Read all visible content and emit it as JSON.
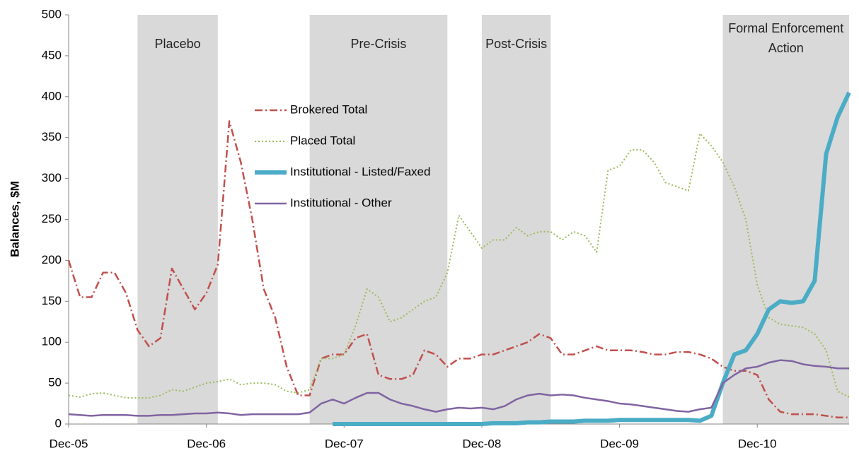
{
  "chart_data": {
    "type": "line",
    "y_label": "Balances, $M",
    "x": [
      "2005-12",
      "2006-01",
      "2006-02",
      "2006-03",
      "2006-04",
      "2006-05",
      "2006-06",
      "2006-07",
      "2006-08",
      "2006-09",
      "2006-10",
      "2006-11",
      "2006-12",
      "2007-01",
      "2007-02",
      "2007-03",
      "2007-04",
      "2007-05",
      "2007-06",
      "2007-07",
      "2007-08",
      "2007-09",
      "2007-10",
      "2007-11",
      "2007-12",
      "2008-01",
      "2008-02",
      "2008-03",
      "2008-04",
      "2008-05",
      "2008-06",
      "2008-07",
      "2008-08",
      "2008-09",
      "2008-10",
      "2008-11",
      "2008-12",
      "2009-01",
      "2009-02",
      "2009-03",
      "2009-04",
      "2009-05",
      "2009-06",
      "2009-07",
      "2009-08",
      "2009-09",
      "2009-10",
      "2009-11",
      "2009-12",
      "2010-01",
      "2010-02",
      "2010-03",
      "2010-04",
      "2010-05",
      "2010-06",
      "2010-07",
      "2010-08",
      "2010-09",
      "2010-10",
      "2010-11",
      "2010-12",
      "2011-01",
      "2011-02",
      "2011-03",
      "2011-04",
      "2011-05",
      "2011-06",
      "2011-07",
      "2011-08"
    ],
    "series": [
      {
        "name": "Brokered Total",
        "color": "#c0504d",
        "style": "dashdot",
        "values": [
          200,
          155,
          155,
          185,
          185,
          160,
          115,
          95,
          105,
          190,
          165,
          140,
          160,
          195,
          370,
          320,
          250,
          165,
          130,
          70,
          35,
          35,
          80,
          85,
          85,
          105,
          110,
          60,
          55,
          55,
          60,
          90,
          85,
          70,
          80,
          80,
          85,
          85,
          90,
          95,
          100,
          110,
          105,
          85,
          85,
          90,
          95,
          90,
          90,
          90,
          88,
          85,
          85,
          88,
          88,
          85,
          80,
          70,
          65,
          65,
          60,
          30,
          15,
          12,
          12,
          12,
          10,
          8,
          8
        ]
      },
      {
        "name": "Placed Total",
        "color": "#9bbb59",
        "style": "dotted",
        "values": [
          35,
          33,
          37,
          38,
          35,
          32,
          32,
          32,
          35,
          42,
          40,
          45,
          50,
          52,
          55,
          48,
          50,
          50,
          48,
          40,
          38,
          42,
          80,
          80,
          85,
          120,
          165,
          155,
          125,
          130,
          140,
          150,
          155,
          185,
          255,
          235,
          215,
          225,
          225,
          240,
          230,
          235,
          235,
          225,
          235,
          230,
          210,
          310,
          315,
          335,
          335,
          320,
          295,
          290,
          285,
          355,
          340,
          320,
          290,
          250,
          170,
          130,
          122,
          120,
          118,
          110,
          90,
          40,
          33
        ]
      },
      {
        "name": "Institutional - Listed/Faxed",
        "color": "#4bacc6",
        "style": "thick",
        "values": [
          null,
          null,
          null,
          null,
          null,
          null,
          null,
          null,
          null,
          null,
          null,
          null,
          null,
          null,
          null,
          null,
          null,
          null,
          null,
          null,
          null,
          null,
          null,
          0,
          0,
          0,
          0,
          0,
          0,
          0,
          0,
          0,
          0,
          0,
          0,
          0,
          0,
          1,
          1,
          1,
          2,
          2,
          3,
          3,
          3,
          4,
          4,
          4,
          5,
          5,
          5,
          5,
          5,
          5,
          5,
          4,
          10,
          50,
          85,
          90,
          110,
          140,
          150,
          148,
          150,
          175,
          330,
          375,
          405
        ]
      },
      {
        "name": "Institutional - Other",
        "color": "#8064a2",
        "style": "solid",
        "values": [
          12,
          11,
          10,
          11,
          11,
          11,
          10,
          10,
          11,
          11,
          12,
          13,
          13,
          14,
          13,
          11,
          12,
          12,
          12,
          12,
          12,
          14,
          25,
          30,
          25,
          32,
          38,
          38,
          30,
          25,
          22,
          18,
          15,
          18,
          20,
          19,
          20,
          18,
          22,
          30,
          35,
          37,
          35,
          36,
          35,
          32,
          30,
          28,
          25,
          24,
          22,
          20,
          18,
          16,
          15,
          18,
          20,
          50,
          60,
          68,
          70,
          75,
          78,
          77,
          73,
          71,
          70,
          68,
          68
        ]
      }
    ],
    "regions": [
      {
        "label": "Placebo",
        "start": "2006-06",
        "end": "2007-01"
      },
      {
        "label": "Pre-Crisis",
        "start": "2007-09",
        "end": "2008-09"
      },
      {
        "label": "Post-Crisis",
        "start": "2008-12",
        "end": "2009-06"
      },
      {
        "label": "Formal Enforcement Action",
        "start": "2010-09",
        "end": "2011-08"
      }
    ],
    "xlim": [
      "2005-12",
      "2011-08"
    ],
    "xticks": [
      {
        "value": "2005-12",
        "label": "Dec-05"
      },
      {
        "value": "2006-12",
        "label": "Dec-06"
      },
      {
        "value": "2007-12",
        "label": "Dec-07"
      },
      {
        "value": "2008-12",
        "label": "Dec-08"
      },
      {
        "value": "2009-12",
        "label": "Dec-09"
      },
      {
        "value": "2010-12",
        "label": "Dec-10"
      }
    ],
    "ylim": [
      0,
      500
    ],
    "yticks": [
      0,
      50,
      100,
      150,
      200,
      250,
      300,
      350,
      400,
      450,
      500
    ]
  }
}
